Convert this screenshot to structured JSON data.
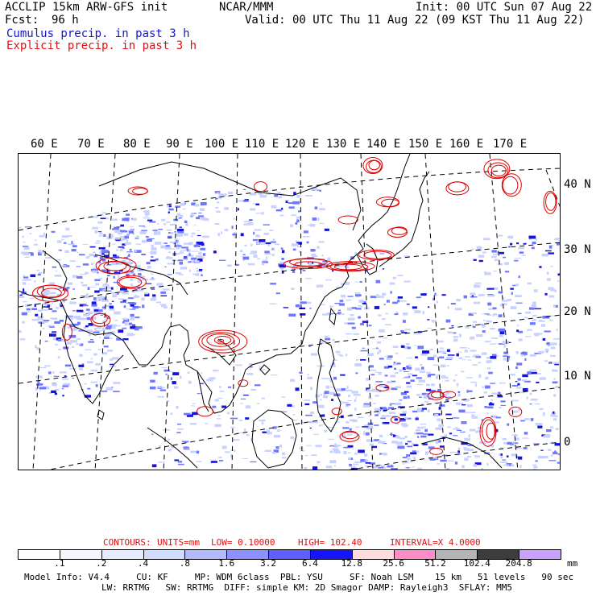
{
  "header": {
    "model_line": "ACCLIP 15km ARW-GFS init",
    "center": "NCAR/MMM",
    "init": "Init: 00 UTC Sun 07 Aug 22",
    "fcst_label": "Fcst:",
    "fcst_value": "96 h",
    "valid": "Valid: 00 UTC Thu 11 Aug 22 (09 KST Thu 11 Aug 22)",
    "cumulus": "Cumulus precip. in past 3 h",
    "explicit": "Explicit precip. in past 3 h"
  },
  "map": {
    "lon_labels": [
      "60 E",
      "70 E",
      "80 E",
      "90 E",
      "100 E",
      "110 E",
      "120 E",
      "130 E",
      "140 E",
      "150 E",
      "160 E",
      "170 E"
    ],
    "lat_labels": [
      "40 N",
      "30 N",
      "20 N",
      "10 N",
      "0"
    ],
    "colors": {
      "coast": "#000000",
      "grid": "#000000",
      "cumulus_light": "#c8d2ff",
      "cumulus_mid": "#6e78ff",
      "cumulus_dark": "#1414dc",
      "explicit": "#e00000"
    }
  },
  "contours": {
    "prefix": "CONTOURS:",
    "units": "UNITS=mm",
    "low": "LOW= 0.10000",
    "high": "HIGH= 102.40",
    "interval": "INTERVAL=X 4.0000"
  },
  "colorbar": {
    "unit": "mm",
    "ticks": [
      ".1",
      ".2",
      ".4",
      ".8",
      "1.6",
      "3.2",
      "6.4",
      "12.8",
      "25.6",
      "51.2",
      "102.4",
      "204.8"
    ],
    "colors": [
      "#ffffff",
      "#f5f5ff",
      "#e6ebff",
      "#d2dcff",
      "#b4b9ff",
      "#8c91ff",
      "#5f5fff",
      "#1414ff",
      "#ffdcdc",
      "#ff8cc8",
      "#b4b4b4",
      "#3c3c3c",
      "#c8a0ff"
    ]
  },
  "footer": {
    "line1": "Model Info: V4.4     CU: KF     MP: WDM 6class  PBL: YSU     SF: Noah LSM    15 km   51 levels   90 sec",
    "line2": "LW: RRTMG   SW: RRTMG  DIFF: simple KM: 2D Smagor DAMP: Rayleigh3  SFLAY: MM5"
  }
}
